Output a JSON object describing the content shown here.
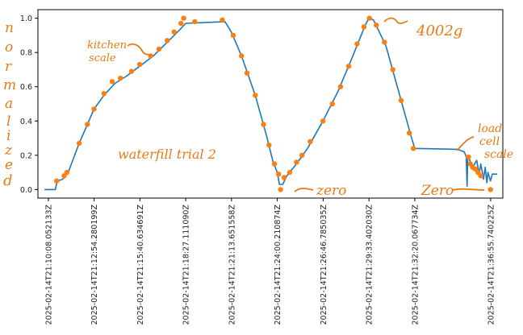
{
  "chart_data": {
    "type": "line",
    "xlabel": "",
    "ylabel": "",
    "ylim": [
      -0.05,
      1.05
    ],
    "y_ticks": [
      "0.0",
      "0.2",
      "0.4",
      "0.6",
      "0.8",
      "1.0"
    ],
    "x_ticks": [
      "2025-02-14T21:10:08.052133Z",
      "2025-02-14T21:12:54.280199Z",
      "2025-02-14T21:15:40.634691Z",
      "2025-02-14T21:18:27.111090Z",
      "2025-02-14T21:21:13.651558Z",
      "2025-02-14T21:24:00.210874Z",
      "2025-02-14T21:26:46.785035Z",
      "2025-02-14T21:29:33.402030Z",
      "2025-02-14T21:32:20.067734Z",
      "2025-02-14T21:36:55.740225Z"
    ],
    "grid": false,
    "legend": "none",
    "series": [
      {
        "name": "load cell",
        "color": "#1f77b4",
        "style": "line",
        "points": [
          [
            "2025-02-14T21:09:54Z",
            0.0
          ],
          [
            "2025-02-14T21:10:33Z",
            0.0
          ],
          [
            "2025-02-14T21:10:40Z",
            0.05
          ],
          [
            "2025-02-14T21:11:00Z",
            0.06
          ],
          [
            "2025-02-14T21:11:20Z",
            0.1
          ],
          [
            "2025-02-14T21:12:00Z",
            0.27
          ],
          [
            "2025-02-14T21:12:54Z",
            0.47
          ],
          [
            "2025-02-14T21:13:30Z",
            0.55
          ],
          [
            "2025-02-14T21:14:10Z",
            0.62
          ],
          [
            "2025-02-14T21:14:50Z",
            0.66
          ],
          [
            "2025-02-14T21:15:40Z",
            0.72
          ],
          [
            "2025-02-14T21:16:30Z",
            0.78
          ],
          [
            "2025-02-14T21:17:20Z",
            0.86
          ],
          [
            "2025-02-14T21:18:10Z",
            0.94
          ],
          [
            "2025-02-14T21:18:27Z",
            0.97
          ],
          [
            "2025-02-14T21:20:50Z",
            0.98
          ],
          [
            "2025-02-14T21:21:13Z",
            0.92
          ],
          [
            "2025-02-14T21:21:50Z",
            0.78
          ],
          [
            "2025-02-14T21:22:40Z",
            0.55
          ],
          [
            "2025-02-14T21:23:20Z",
            0.32
          ],
          [
            "2025-02-14T21:23:45Z",
            0.16
          ],
          [
            "2025-02-14T21:24:00Z",
            0.1
          ],
          [
            "2025-02-14T21:24:08Z",
            0.03
          ],
          [
            "2025-02-14T21:24:20Z",
            0.03
          ],
          [
            "2025-02-14T21:24:35Z",
            0.08
          ],
          [
            "2025-02-14T21:25:10Z",
            0.15
          ],
          [
            "2025-02-14T21:25:50Z",
            0.24
          ],
          [
            "2025-02-14T21:26:46Z",
            0.4
          ],
          [
            "2025-02-14T21:27:40Z",
            0.57
          ],
          [
            "2025-02-14T21:28:35Z",
            0.78
          ],
          [
            "2025-02-14T21:29:20Z",
            0.96
          ],
          [
            "2025-02-14T21:29:33Z",
            1.0
          ],
          [
            "2025-02-14T21:29:50Z",
            0.99
          ],
          [
            "2025-02-14T21:30:35Z",
            0.84
          ],
          [
            "2025-02-14T21:31:20Z",
            0.58
          ],
          [
            "2025-02-14T21:32:05Z",
            0.32
          ],
          [
            "2025-02-14T21:32:20Z",
            0.24
          ],
          [
            "2025-02-14T21:34:55Z",
            0.235
          ],
          [
            "2025-02-14T21:35:20Z",
            0.22
          ],
          [
            "2025-02-14T21:35:27Z",
            0.19
          ],
          [
            "2025-02-14T21:35:30Z",
            0.02
          ],
          [
            "2025-02-14T21:35:33Z",
            0.2
          ],
          [
            "2025-02-14T21:35:50Z",
            0.13
          ],
          [
            "2025-02-14T21:36:05Z",
            0.17
          ],
          [
            "2025-02-14T21:36:14Z",
            0.09
          ],
          [
            "2025-02-14T21:36:20Z",
            0.15
          ],
          [
            "2025-02-14T21:36:30Z",
            0.06
          ],
          [
            "2025-02-14T21:36:36Z",
            0.13
          ],
          [
            "2025-02-14T21:36:42Z",
            0.04
          ],
          [
            "2025-02-14T21:36:46Z",
            0.1
          ],
          [
            "2025-02-14T21:36:55Z",
            0.05
          ],
          [
            "2025-02-14T21:37:02Z",
            0.09
          ],
          [
            "2025-02-14T21:37:20Z",
            0.09
          ]
        ]
      },
      {
        "name": "kitchen scale",
        "color": "#ff7f0e",
        "style": "scatter",
        "points": [
          [
            "2025-02-14T21:10:38Z",
            0.05
          ],
          [
            "2025-02-14T21:11:05Z",
            0.08
          ],
          [
            "2025-02-14T21:11:15Z",
            0.1
          ],
          [
            "2025-02-14T21:12:00Z",
            0.27
          ],
          [
            "2025-02-14T21:12:30Z",
            0.38
          ],
          [
            "2025-02-14T21:12:54Z",
            0.47
          ],
          [
            "2025-02-14T21:13:30Z",
            0.56
          ],
          [
            "2025-02-14T21:14:00Z",
            0.63
          ],
          [
            "2025-02-14T21:14:30Z",
            0.65
          ],
          [
            "2025-02-14T21:15:10Z",
            0.69
          ],
          [
            "2025-02-14T21:15:40Z",
            0.73
          ],
          [
            "2025-02-14T21:16:20Z",
            0.78
          ],
          [
            "2025-02-14T21:16:50Z",
            0.82
          ],
          [
            "2025-02-14T21:17:20Z",
            0.87
          ],
          [
            "2025-02-14T21:17:45Z",
            0.92
          ],
          [
            "2025-02-14T21:18:10Z",
            0.97
          ],
          [
            "2025-02-14T21:18:20Z",
            1.0
          ],
          [
            "2025-02-14T21:19:00Z",
            0.98
          ],
          [
            "2025-02-14T21:20:40Z",
            0.99
          ],
          [
            "2025-02-14T21:21:20Z",
            0.9
          ],
          [
            "2025-02-14T21:21:50Z",
            0.78
          ],
          [
            "2025-02-14T21:22:10Z",
            0.68
          ],
          [
            "2025-02-14T21:22:40Z",
            0.55
          ],
          [
            "2025-02-14T21:23:10Z",
            0.38
          ],
          [
            "2025-02-14T21:23:30Z",
            0.26
          ],
          [
            "2025-02-14T21:23:50Z",
            0.15
          ],
          [
            "2025-02-14T21:24:05Z",
            0.09
          ],
          [
            "2025-02-14T21:24:12Z",
            0.0
          ],
          [
            "2025-02-14T21:24:25Z",
            0.07
          ],
          [
            "2025-02-14T21:24:45Z",
            0.1
          ],
          [
            "2025-02-14T21:25:10Z",
            0.16
          ],
          [
            "2025-02-14T21:25:30Z",
            0.2
          ],
          [
            "2025-02-14T21:26:00Z",
            0.28
          ],
          [
            "2025-02-14T21:26:46Z",
            0.4
          ],
          [
            "2025-02-14T21:27:20Z",
            0.5
          ],
          [
            "2025-02-14T21:27:50Z",
            0.6
          ],
          [
            "2025-02-14T21:28:20Z",
            0.72
          ],
          [
            "2025-02-14T21:28:50Z",
            0.85
          ],
          [
            "2025-02-14T21:29:15Z",
            0.95
          ],
          [
            "2025-02-14T21:29:35Z",
            1.0
          ],
          [
            "2025-02-14T21:30:00Z",
            0.96
          ],
          [
            "2025-02-14T21:30:30Z",
            0.86
          ],
          [
            "2025-02-14T21:31:00Z",
            0.7
          ],
          [
            "2025-02-14T21:31:30Z",
            0.52
          ],
          [
            "2025-02-14T21:32:00Z",
            0.33
          ],
          [
            "2025-02-14T21:32:15Z",
            0.24
          ],
          [
            "2025-02-14T21:35:35Z",
            0.19
          ],
          [
            "2025-02-14T21:35:42Z",
            0.15
          ],
          [
            "2025-02-14T21:35:50Z",
            0.13
          ],
          [
            "2025-02-14T21:36:00Z",
            0.12
          ],
          [
            "2025-02-14T21:36:10Z",
            0.1
          ],
          [
            "2025-02-14T21:36:20Z",
            0.08
          ],
          [
            "2025-02-14T21:36:55Z",
            0.0
          ]
        ]
      }
    ]
  },
  "annotations": {
    "y_side": [
      "n",
      "o",
      "r",
      "m",
      "a",
      "l",
      "i",
      "z",
      "e",
      "d"
    ],
    "kitchen_scale": [
      "kitchen",
      "scale"
    ],
    "load_cell_scale": [
      "load",
      "cell",
      "scale"
    ],
    "trial": "waterfill trial 2",
    "peak_weight": "4002g",
    "zero_label_1": "zero",
    "zero_label_2": "Zero"
  }
}
